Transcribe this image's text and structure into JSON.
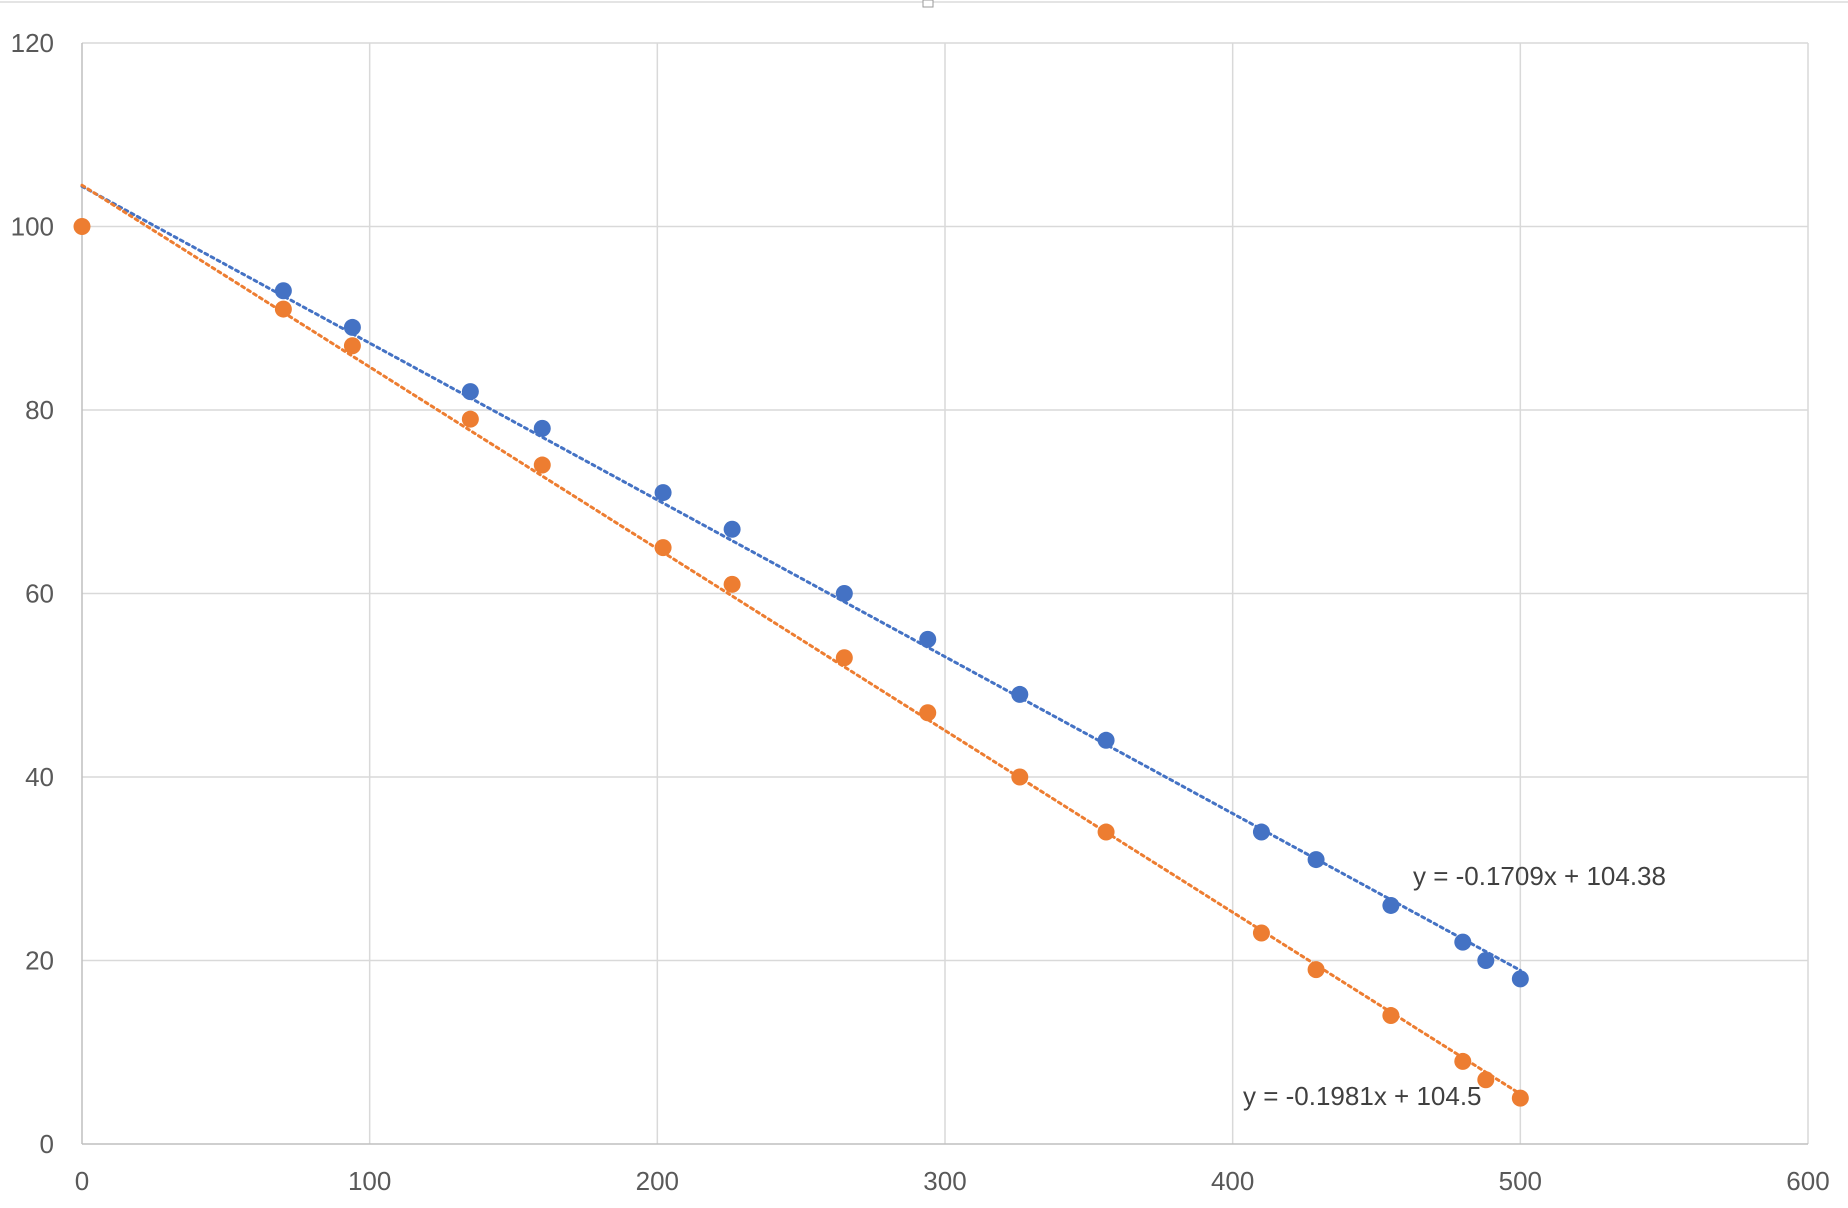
{
  "chart_data": {
    "type": "scatter",
    "title": "",
    "xlabel": "",
    "ylabel": "",
    "xlim": [
      0,
      600
    ],
    "ylim": [
      0,
      120
    ],
    "x_ticks": [
      0,
      100,
      200,
      300,
      400,
      500,
      600
    ],
    "y_ticks": [
      0,
      20,
      40,
      60,
      80,
      100,
      120
    ],
    "grid": true,
    "legend": "none",
    "series": [
      {
        "color": "#4472C4",
        "points": [
          [
            70,
            93
          ],
          [
            94,
            89
          ],
          [
            135,
            82
          ],
          [
            160,
            78
          ],
          [
            202,
            71
          ],
          [
            226,
            67
          ],
          [
            265,
            60
          ],
          [
            294,
            55
          ],
          [
            326,
            49
          ],
          [
            356,
            44
          ],
          [
            410,
            34
          ],
          [
            429,
            31
          ],
          [
            455,
            26
          ],
          [
            480,
            22
          ],
          [
            488,
            20
          ],
          [
            500,
            18
          ]
        ],
        "trendline": {
          "type": "linear",
          "slope": -0.1709,
          "intercept": 104.38,
          "x_range": [
            0,
            500
          ],
          "style": "dotted",
          "equation_label": "y = -0.1709x + 104.38"
        }
      },
      {
        "color": "#ED7D31",
        "points": [
          [
            0,
            100
          ],
          [
            70,
            91
          ],
          [
            94,
            87
          ],
          [
            135,
            79
          ],
          [
            160,
            74
          ],
          [
            202,
            65
          ],
          [
            226,
            61
          ],
          [
            265,
            53
          ],
          [
            294,
            47
          ],
          [
            326,
            40
          ],
          [
            356,
            34
          ],
          [
            410,
            23
          ],
          [
            429,
            19
          ],
          [
            455,
            14
          ],
          [
            480,
            9
          ],
          [
            488,
            7
          ],
          [
            500,
            5
          ]
        ],
        "trendline": {
          "type": "linear",
          "slope": -0.1981,
          "intercept": 104.5,
          "x_range": [
            0,
            500
          ],
          "style": "dotted",
          "equation_label": "y = -0.1981x + 104.5"
        }
      }
    ]
  }
}
